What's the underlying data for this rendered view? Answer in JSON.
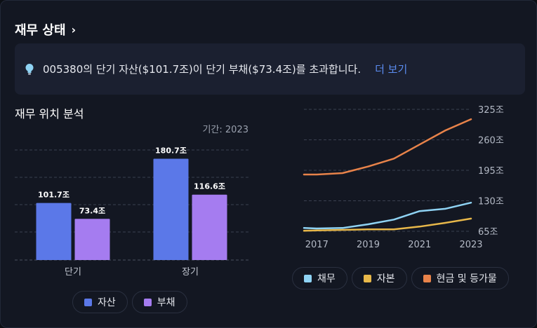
{
  "header": {
    "title": "재무 상태",
    "chevron": "chevron-right-icon"
  },
  "insight": {
    "icon": "lightbulb-icon",
    "text": "005380의 단기 자산($101.7조)이 단기 부채($73.4조)를 초과합니다.",
    "more_label": "더 보기"
  },
  "position": {
    "title": "재무 위치 분석",
    "period": "기간: 2023",
    "legend": [
      {
        "label": "자산",
        "color": "#5b78e8"
      },
      {
        "label": "부채",
        "color": "#a57cf0"
      }
    ]
  },
  "history": {
    "legend": [
      {
        "label": "채무",
        "color": "#8fd3f4"
      },
      {
        "label": "자본",
        "color": "#e8b84a"
      },
      {
        "label": "현금 및 등가물",
        "color": "#e8834a"
      }
    ]
  },
  "chart_data": [
    {
      "type": "bar",
      "categories": [
        "단기",
        "장기"
      ],
      "series": [
        {
          "name": "자산",
          "values": [
            101.7,
            180.7
          ],
          "labels": [
            "101.7조",
            "180.7조"
          ]
        },
        {
          "name": "부채",
          "values": [
            73.4,
            116.6
          ],
          "labels": [
            "73.4조",
            "116.6조"
          ]
        }
      ],
      "ylim": [
        0,
        200
      ],
      "grid": true
    },
    {
      "type": "line",
      "x": [
        2016.5,
        2017,
        2018,
        2019,
        2020,
        2021,
        2022,
        2023
      ],
      "xticks": [
        "2017",
        "2019",
        "2021",
        "2023"
      ],
      "yticks": [
        "65조",
        "130조",
        "195조",
        "260조",
        "325조"
      ],
      "ylim": [
        65,
        325
      ],
      "grid": true,
      "series": [
        {
          "name": "채무",
          "values": [
            72,
            71,
            72,
            80,
            90,
            108,
            113,
            126
          ]
        },
        {
          "name": "자본",
          "values": [
            66,
            67,
            68,
            69,
            69,
            75,
            83,
            92
          ]
        },
        {
          "name": "현금 및 등가물",
          "values": [
            186,
            186,
            189,
            203,
            220,
            250,
            280,
            304
          ]
        }
      ]
    }
  ]
}
